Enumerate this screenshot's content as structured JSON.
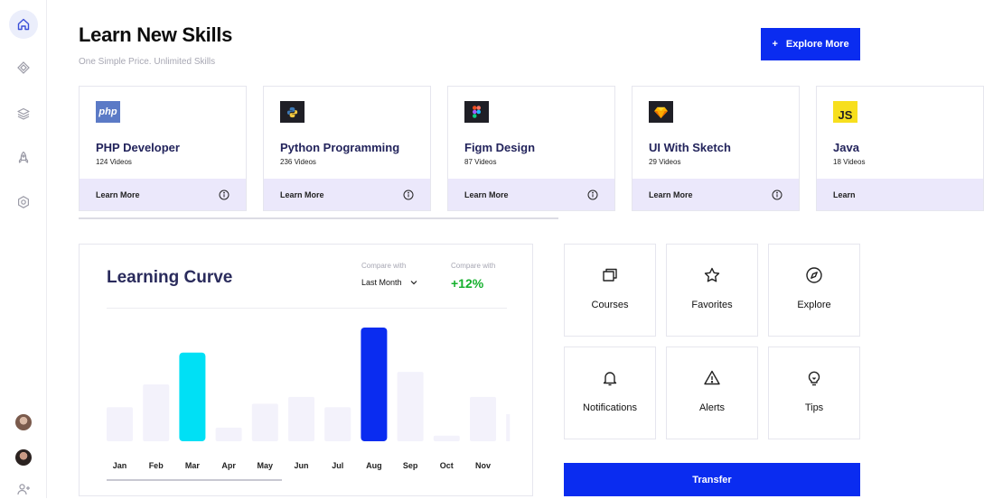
{
  "header": {
    "title": "Learn New Skills",
    "subtitle": "One Simple Price. Unlimited Skills",
    "explore_icon": "+",
    "explore_label": "Explore More"
  },
  "sidebar": {
    "items": [
      {
        "icon": "home-icon",
        "active": true
      },
      {
        "icon": "diamond-icon",
        "active": false
      },
      {
        "icon": "layers-icon",
        "active": false
      },
      {
        "icon": "rocket-icon",
        "active": false
      },
      {
        "icon": "hexagon-icon",
        "active": false
      }
    ],
    "bottom": [
      {
        "icon": "avatar"
      },
      {
        "icon": "avatar"
      },
      {
        "icon": "add-user-icon"
      }
    ]
  },
  "courses": [
    {
      "name": "PHP Developer",
      "videos": "124 Videos",
      "logo_text": "php",
      "logo_icon": "php-logo",
      "logo_color": "#5b7ac6",
      "link": "Learn More"
    },
    {
      "name": "Python Programming",
      "videos": "236 Videos",
      "logo_text": "",
      "logo_icon": "python-logo",
      "logo_color": "#1f1f26",
      "link": "Learn More"
    },
    {
      "name": "Figm Design",
      "videos": "87 Videos",
      "logo_text": "",
      "logo_icon": "figma-logo",
      "logo_color": "#1f1f26",
      "link": "Learn More"
    },
    {
      "name": "UI With Sketch",
      "videos": "29 Videos",
      "logo_text": "",
      "logo_icon": "sketch-logo",
      "logo_color": "#1f1f26",
      "link": "Learn More"
    },
    {
      "name": "Java",
      "videos": "18 Videos",
      "logo_text": "JS",
      "logo_icon": "js-logo",
      "logo_color": "#f7df1e",
      "link": "Learn"
    }
  ],
  "learning_curve": {
    "title": "Learning Curve",
    "compare_label_1": "Compare with",
    "compare_value_1": "Last Month",
    "compare_label_2": "Compare with",
    "compare_value_2": "+12%",
    "colors": {
      "default": "#f3f2fb",
      "cyan": "#00e0f5",
      "blue": "#0a2cf0"
    }
  },
  "chart_data": {
    "type": "bar",
    "categories": [
      "Jan",
      "Feb",
      "Mar",
      "Apr",
      "May",
      "Jun",
      "Jul",
      "Aug",
      "Sep",
      "Oct",
      "Nov"
    ],
    "values": [
      30,
      50,
      78,
      12,
      33,
      39,
      30,
      100,
      61,
      5,
      39
    ],
    "highlight": {
      "Mar": "cyan",
      "Aug": "blue"
    },
    "ylim": [
      0,
      100
    ],
    "grid": false
  },
  "actions": [
    {
      "label": "Courses",
      "icon": "courses-icon"
    },
    {
      "label": "Favorites",
      "icon": "star-icon"
    },
    {
      "label": "Explore",
      "icon": "compass-icon"
    },
    {
      "label": "Notifications",
      "icon": "bell-icon"
    },
    {
      "label": "Alerts",
      "icon": "warning-icon"
    },
    {
      "label": "Tips",
      "icon": "lightbulb-icon"
    }
  ],
  "transfer_label": "Transfer"
}
